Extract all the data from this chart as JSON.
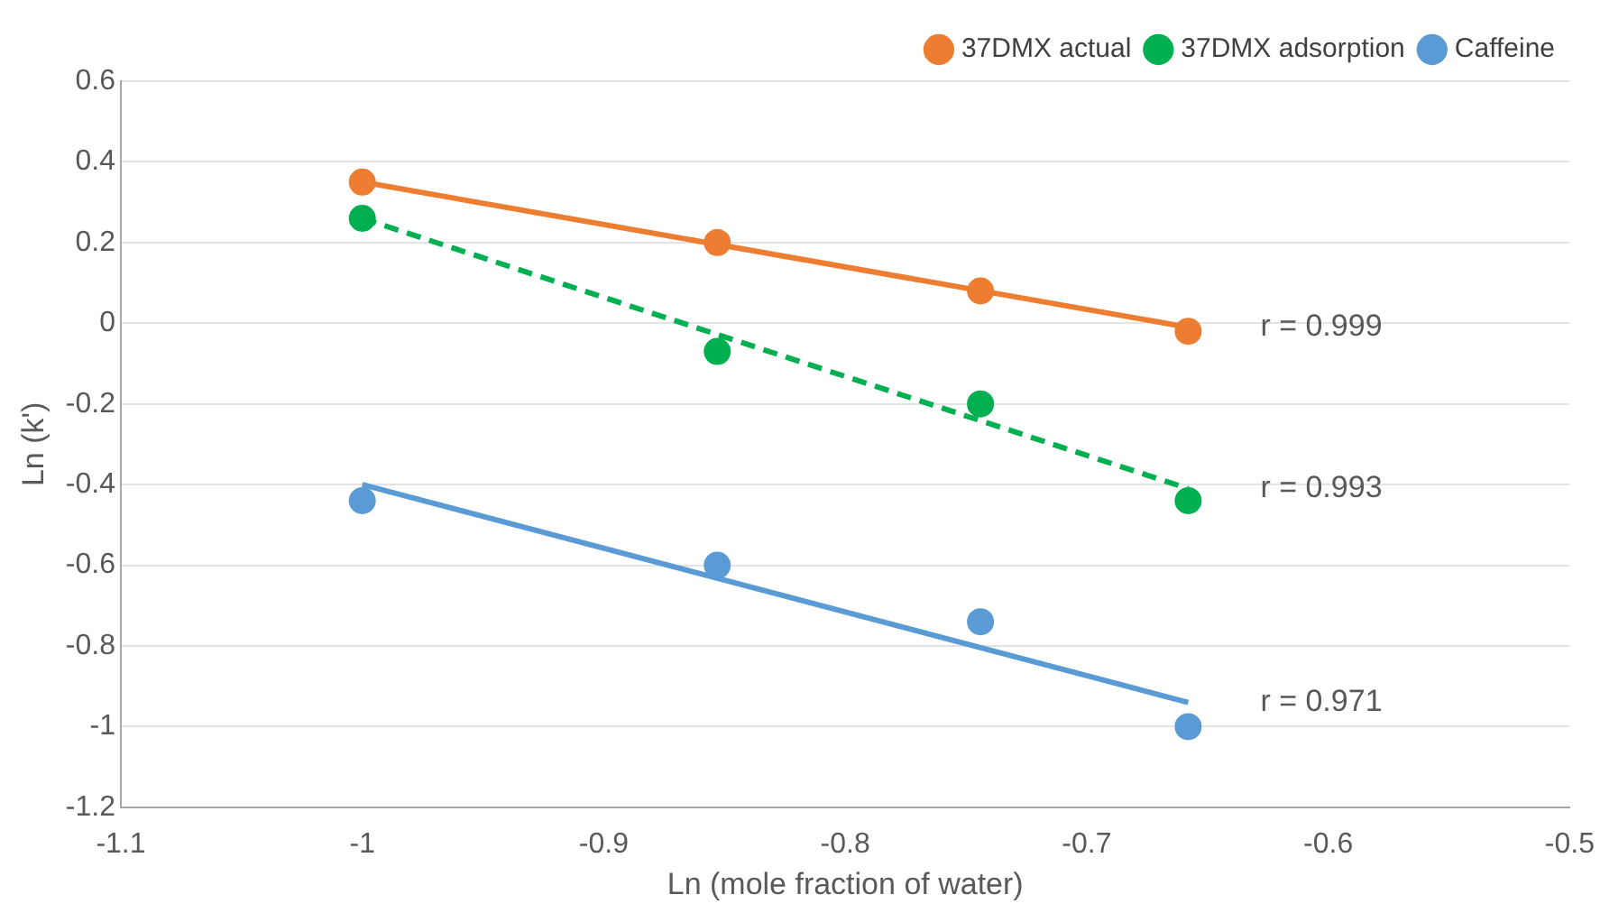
{
  "chart_data": {
    "type": "scatter",
    "xlabel": "Ln (mole fraction of water)",
    "ylabel": "Ln (k')",
    "xlim": [
      -1.1,
      -0.5
    ],
    "xticks": [
      -1.1,
      -1,
      -0.9,
      -0.8,
      -0.7,
      -0.6,
      -0.5
    ],
    "ylim": [
      -1.2,
      0.6
    ],
    "yticks": [
      -1.2,
      -1,
      -0.8,
      -0.6,
      -0.4,
      -0.2,
      0,
      0.2,
      0.4,
      0.6
    ],
    "grid": "y",
    "legend": "top right",
    "marker": "circle",
    "series": [
      {
        "name": "37DMX actual",
        "color": "#ed7d31",
        "x": [
          -1.0,
          -0.853,
          -0.744,
          -0.658
        ],
        "values": [
          0.35,
          0.2,
          0.08,
          -0.02
        ]
      },
      {
        "name": "37DMX adsorption",
        "color": "#00b050",
        "x": [
          -1.0,
          -0.853,
          -0.744,
          -0.658
        ],
        "values": [
          0.26,
          -0.07,
          -0.2,
          -0.44
        ]
      },
      {
        "name": "Caffeine",
        "color": "#5b9bd5",
        "x": [
          -1.0,
          -0.853,
          -0.744,
          -0.658
        ],
        "values": [
          -0.44,
          -0.6,
          -0.74,
          -1.0
        ]
      },
      {
        "type": "line",
        "color": "#ed7d31",
        "marker": "none",
        "line_style": "solid",
        "x": [
          -1.0,
          -0.658
        ],
        "values": [
          0.35,
          -0.01
        ]
      },
      {
        "type": "line",
        "color": "#00b050",
        "marker": "none",
        "line_style": "dashed",
        "x": [
          -1.0,
          -0.658
        ],
        "values": [
          0.26,
          -0.41
        ]
      },
      {
        "type": "line",
        "color": "#5b9bd5",
        "marker": "none",
        "line_style": "solid",
        "x": [
          -1.0,
          -0.658
        ],
        "values": [
          -0.4,
          -0.94
        ]
      }
    ],
    "annotations": [
      "r = 0.999",
      "r = 0.993",
      "r = 0.971"
    ]
  }
}
